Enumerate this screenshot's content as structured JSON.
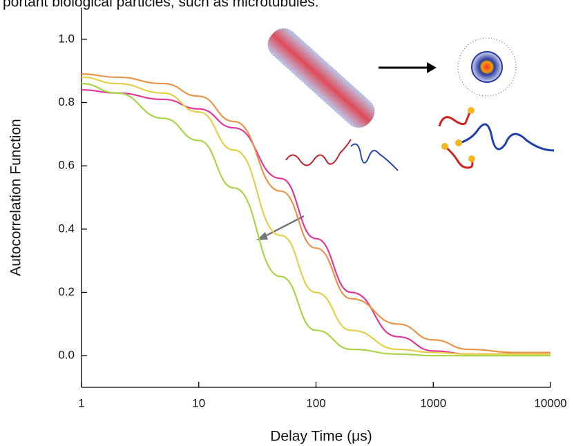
{
  "chart_data": {
    "type": "line",
    "title": "portant biological particles, such as microtubules.",
    "x_label": "Delay Time (μs)",
    "y_label": "Autocorrelation Function",
    "xscale": "log",
    "x": [
      1,
      2,
      5,
      10,
      20,
      50,
      100,
      200,
      500,
      1000,
      2000,
      5000,
      10000
    ],
    "series": [
      {
        "name": "magenta",
        "color": "#e0389a",
        "values": [
          0.84,
          0.83,
          0.81,
          0.78,
          0.72,
          0.56,
          0.37,
          0.2,
          0.06,
          0.015,
          0.005,
          0.005,
          0.005
        ]
      },
      {
        "name": "orange",
        "color": "#e8944a",
        "values": [
          0.89,
          0.88,
          0.86,
          0.82,
          0.74,
          0.52,
          0.34,
          0.18,
          0.1,
          0.05,
          0.02,
          0.01,
          0.01
        ]
      },
      {
        "name": "yellow",
        "color": "#e3d04a",
        "values": [
          0.88,
          0.86,
          0.83,
          0.77,
          0.65,
          0.38,
          0.2,
          0.08,
          0.02,
          0.01,
          0.005,
          0.005,
          0.005
        ]
      },
      {
        "name": "green",
        "color": "#a8d448",
        "values": [
          0.86,
          0.83,
          0.75,
          0.68,
          0.53,
          0.25,
          0.08,
          0.02,
          0.005,
          0,
          0,
          0,
          0
        ]
      }
    ],
    "xlim": [
      1,
      10000
    ],
    "xticks": [
      1,
      10,
      100,
      1000,
      10000
    ],
    "ylim": [
      -0.1,
      1.1
    ],
    "yticks": [
      {
        "value": 0,
        "label": "0.0"
      },
      {
        "value": 0.2,
        "label": "0.2"
      },
      {
        "value": 0.4,
        "label": "0.4"
      },
      {
        "value": 0.6,
        "label": "0.6"
      },
      {
        "value": 0.8,
        "label": "0.8"
      },
      {
        "value": 1,
        "label": "1.0"
      }
    ]
  }
}
